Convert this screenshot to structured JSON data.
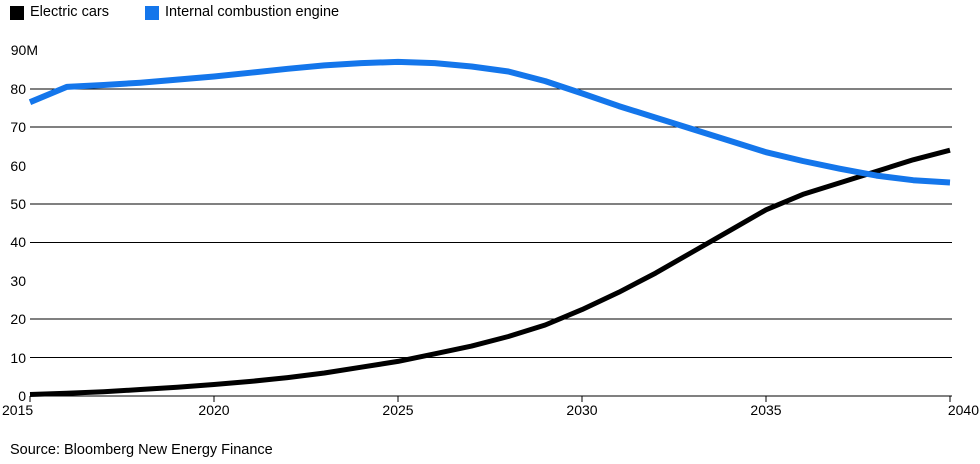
{
  "legend": {
    "items": [
      {
        "label": "Electric cars",
        "color": "#000000"
      },
      {
        "label": "Internal combustion engine",
        "color": "#1476EB"
      }
    ]
  },
  "source": "Source: Bloomberg New Energy Finance",
  "chart_data": {
    "type": "line",
    "title": "",
    "xlabel": "",
    "ylabel": "",
    "unit": "M",
    "x": [
      2015,
      2016,
      2017,
      2018,
      2019,
      2020,
      2021,
      2022,
      2023,
      2024,
      2025,
      2026,
      2027,
      2028,
      2029,
      2030,
      2031,
      2032,
      2033,
      2034,
      2035,
      2036,
      2037,
      2038,
      2039,
      2040
    ],
    "series": [
      {
        "name": "Electric cars",
        "color": "#000000",
        "values": [
          0.4,
          0.7,
          1.1,
          1.7,
          2.3,
          3.0,
          3.8,
          4.8,
          6.0,
          7.5,
          9.0,
          11.0,
          13.0,
          15.5,
          18.5,
          22.5,
          27.0,
          32.0,
          37.5,
          43.0,
          48.5,
          52.5,
          55.5,
          58.5,
          61.5,
          64.0
        ]
      },
      {
        "name": "Internal combustion engine",
        "color": "#1476EB",
        "values": [
          76.5,
          80.5,
          81.0,
          81.6,
          82.4,
          83.2,
          84.2,
          85.2,
          86.1,
          86.7,
          87.0,
          86.7,
          85.8,
          84.5,
          82.0,
          78.8,
          75.5,
          72.5,
          69.5,
          66.5,
          63.5,
          61.2,
          59.2,
          57.4,
          56.2,
          55.6
        ]
      }
    ],
    "xlim": [
      2015,
      2040
    ],
    "ylim": [
      0,
      90
    ],
    "xtick_values": [
      2015,
      2020,
      2025,
      2030,
      2035,
      2040
    ],
    "xtick_labels": [
      "2015",
      "2020",
      "2025",
      "2030",
      "2035",
      "2040"
    ],
    "ytick_values": [
      0,
      10,
      20,
      30,
      40,
      50,
      60,
      70,
      80,
      90
    ],
    "ytick_labels": [
      "0",
      "10",
      "20",
      "30",
      "40",
      "50",
      "60",
      "70",
      "80",
      "90M"
    ],
    "gridline_values": [
      10,
      20,
      40,
      50,
      70,
      80
    ],
    "grid": "horizontal-only",
    "legend_position": "top-left",
    "annotations": []
  }
}
